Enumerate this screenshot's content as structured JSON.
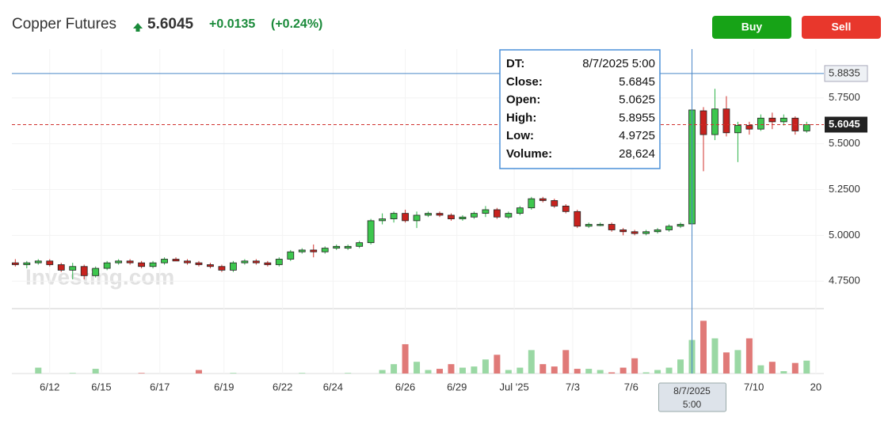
{
  "chart_data": {
    "type": "candlestick",
    "title": "Copper Futures",
    "price": "5.6045",
    "change": "+0.0135",
    "change_pct": "(+0.24%)",
    "buttons": [
      "Buy",
      "Sell"
    ],
    "watermark": "Investing.com",
    "open": [
      4.85,
      4.84,
      4.85,
      4.86,
      4.84,
      4.81,
      4.83,
      4.78,
      4.82,
      4.85,
      4.86,
      4.85,
      4.83,
      4.85,
      4.87,
      4.86,
      4.85,
      4.84,
      4.83,
      4.81,
      4.85,
      4.86,
      4.85,
      4.84,
      4.87,
      4.91,
      4.92,
      4.91,
      4.93,
      4.93,
      4.94,
      4.96,
      5.08,
      5.09,
      5.12,
      5.08,
      5.11,
      5.12,
      5.11,
      5.09,
      5.1,
      5.12,
      5.14,
      5.1,
      5.12,
      5.15,
      5.2,
      5.19,
      5.16,
      5.13,
      5.05,
      5.06,
      5.06,
      5.03,
      5.02,
      5.01,
      5.02,
      5.03,
      5.05,
      5.0625,
      5.68,
      5.55,
      5.69,
      5.56,
      5.6,
      5.58,
      5.64,
      5.62,
      5.64,
      5.57
    ],
    "high": [
      4.87,
      4.86,
      4.87,
      4.87,
      4.85,
      4.85,
      4.84,
      4.83,
      4.86,
      4.87,
      4.87,
      4.86,
      4.86,
      4.88,
      4.88,
      4.87,
      4.86,
      4.85,
      4.84,
      4.86,
      4.87,
      4.87,
      4.86,
      4.88,
      4.92,
      4.93,
      4.95,
      4.94,
      4.95,
      4.95,
      4.97,
      5.09,
      5.12,
      5.13,
      5.14,
      5.13,
      5.13,
      5.13,
      5.12,
      5.11,
      5.13,
      5.16,
      5.15,
      5.13,
      5.16,
      5.21,
      5.21,
      5.2,
      5.17,
      5.14,
      5.07,
      5.07,
      5.07,
      5.04,
      5.03,
      5.03,
      5.04,
      5.06,
      5.07,
      5.8955,
      5.7,
      5.8,
      5.76,
      5.62,
      5.62,
      5.66,
      5.67,
      5.66,
      5.65,
      5.62
    ],
    "low": [
      4.83,
      4.82,
      4.84,
      4.83,
      4.8,
      4.76,
      4.76,
      4.77,
      4.81,
      4.84,
      4.84,
      4.82,
      4.82,
      4.84,
      4.86,
      4.84,
      4.83,
      4.82,
      4.8,
      4.8,
      4.84,
      4.84,
      4.83,
      4.83,
      4.86,
      4.9,
      4.88,
      4.9,
      4.92,
      4.92,
      4.93,
      4.95,
      5.06,
      5.07,
      5.07,
      5.04,
      5.1,
      5.1,
      5.08,
      5.08,
      5.09,
      5.1,
      5.09,
      5.09,
      5.11,
      5.14,
      5.18,
      5.15,
      5.12,
      5.04,
      5.04,
      5.05,
      5.02,
      5.0,
      5.0,
      5.0,
      5.01,
      5.02,
      5.04,
      4.9725,
      5.35,
      5.52,
      5.54,
      5.4,
      5.55,
      5.57,
      5.58,
      5.6,
      5.55,
      5.56
    ],
    "close": [
      4.84,
      4.85,
      4.86,
      4.84,
      4.81,
      4.83,
      4.78,
      4.82,
      4.85,
      4.86,
      4.85,
      4.83,
      4.85,
      4.87,
      4.86,
      4.85,
      4.84,
      4.83,
      4.81,
      4.85,
      4.86,
      4.85,
      4.84,
      4.87,
      4.91,
      4.92,
      4.91,
      4.93,
      4.94,
      4.94,
      4.96,
      5.08,
      5.09,
      5.12,
      5.08,
      5.11,
      5.12,
      5.11,
      5.09,
      5.1,
      5.12,
      5.14,
      5.1,
      5.12,
      5.15,
      5.2,
      5.19,
      5.16,
      5.13,
      5.05,
      5.06,
      5.06,
      5.03,
      5.02,
      5.01,
      5.02,
      5.03,
      5.05,
      5.06,
      5.6845,
      5.55,
      5.69,
      5.56,
      5.6,
      5.58,
      5.64,
      5.62,
      5.64,
      5.57,
      5.6045
    ],
    "volume": [
      0,
      0,
      5000,
      0,
      0,
      500,
      0,
      4000,
      0,
      0,
      0,
      500,
      0,
      0,
      0,
      0,
      3000,
      0,
      0,
      500,
      0,
      0,
      0,
      0,
      0,
      500,
      0,
      0,
      0,
      500,
      0,
      0,
      3000,
      8000,
      25000,
      10000,
      3000,
      4000,
      8000,
      5000,
      6000,
      12000,
      16000,
      3000,
      5000,
      20000,
      8000,
      6000,
      20000,
      4000,
      4000,
      3000,
      1000,
      5000,
      13000,
      1000,
      3000,
      5000,
      12000,
      28624,
      45000,
      30000,
      18000,
      20000,
      30000,
      7000,
      10000,
      2000,
      9000,
      11000
    ],
    "up_color": "#2eb34a",
    "down_color": "#d0312d",
    "xlim": [
      -0.3,
      70.5
    ],
    "xticks": [
      {
        "value": 3,
        "label": "6/12"
      },
      {
        "value": 7.5,
        "label": "6/15"
      },
      {
        "value": 12.6,
        "label": "6/17"
      },
      {
        "value": 18.2,
        "label": "6/19"
      },
      {
        "value": 23.3,
        "label": "6/22"
      },
      {
        "value": 27.7,
        "label": "6/24"
      },
      {
        "value": 34,
        "label": "6/26"
      },
      {
        "value": 38.5,
        "label": "6/29"
      },
      {
        "value": 43.5,
        "label": "Jul '25"
      },
      {
        "value": 48.6,
        "label": "7/3"
      },
      {
        "value": 53.7,
        "label": "7/6"
      },
      {
        "value": 64.4,
        "label": "7/10"
      },
      {
        "value": 69.8,
        "label": "20"
      }
    ],
    "ylim": [
      4.6,
      6.017
    ],
    "yticks": [
      {
        "value": 4.75,
        "label": "4.7500"
      },
      {
        "value": 5,
        "label": "5.0000"
      },
      {
        "value": 5.25,
        "label": "5.2500"
      },
      {
        "value": 5.5,
        "label": "5.5000"
      },
      {
        "value": 5.75,
        "label": "5.7500"
      }
    ],
    "volume_ylim": [
      0,
      52000
    ],
    "crosshair": {
      "index": 59,
      "price": 5.8835,
      "price_label": "5.8835",
      "date_label": [
        "8/7/2025",
        "5:00"
      ]
    },
    "last_price": {
      "value": 5.6045,
      "label": "5.6045"
    },
    "tooltip": [
      [
        "DT:",
        "8/7/2025 5:00"
      ],
      [
        "Close:",
        "5.6845"
      ],
      [
        "Open:",
        "5.0625"
      ],
      [
        "High:",
        "5.8955"
      ],
      [
        "Low:",
        "4.9725"
      ],
      [
        "Volume:",
        "28,624"
      ]
    ]
  }
}
